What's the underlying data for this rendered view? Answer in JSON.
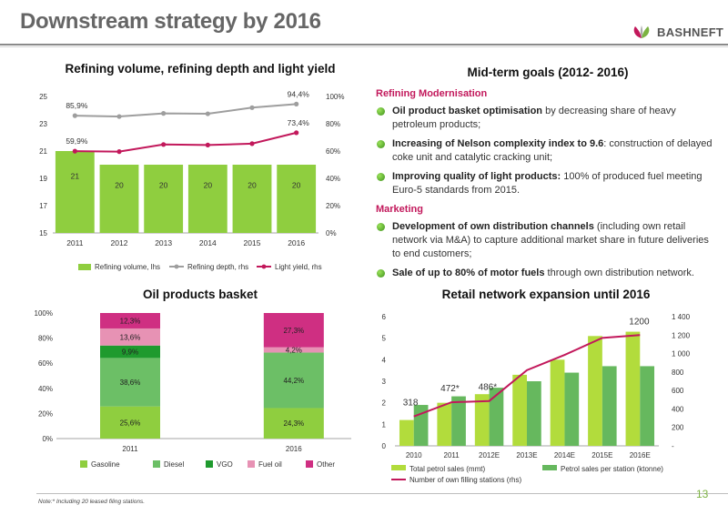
{
  "header": {
    "title": "Downstream strategy by 2016",
    "logo_text": "BASHNEFT"
  },
  "note": "Note:* Including 20 leased filing stations.",
  "page_number": "13",
  "goals": {
    "title": "Mid-term goals (2012- 2016)",
    "sections": [
      {
        "heading": "Refining Modernisation",
        "items": [
          {
            "bold": "Oil product basket optimisation",
            "text": " by decreasing share of heavy petroleum products;"
          },
          {
            "bold": "Increasing of Nelson complexity index to 9.6",
            "text": ": construction of delayed coke unit and catalytic cracking unit;"
          },
          {
            "bold": "Improving quality of light products:",
            "text": " 100% of produced fuel meeting Euro-5 standards from 2015."
          }
        ]
      },
      {
        "heading": "Marketing",
        "items": [
          {
            "bold": "Development of own distribution channels",
            "text": " (including own retail network via M&A) to capture additional market share in future deliveries to end customers;"
          },
          {
            "bold": "Sale of up to 80% of motor fuels",
            "text": " through own distribution network."
          }
        ]
      }
    ]
  },
  "chart_data": [
    {
      "id": "refining",
      "type": "bar",
      "title": "Refining volume, refining depth and light yield",
      "categories": [
        "2011",
        "2012",
        "2013",
        "2014",
        "2015",
        "2016"
      ],
      "bar_series": {
        "name": "Refining volume, lhs",
        "values": [
          21,
          20,
          20,
          20,
          20,
          20
        ],
        "labels": [
          "21",
          "20",
          "20",
          "20",
          "20",
          "20"
        ],
        "color": "#8fce3f"
      },
      "line_series": [
        {
          "name": "Refining depth, rhs",
          "values": [
            85.9,
            85.3,
            87.6,
            87.3,
            91.8,
            94.4
          ],
          "color": "#9e9e9e",
          "point_labels": [
            {
              "index": 0,
              "text": "85,9%"
            },
            {
              "index": 5,
              "text": "94,4%"
            }
          ]
        },
        {
          "name": "Light yield, rhs",
          "values": [
            59.9,
            59.6,
            64.8,
            64.4,
            65.4,
            73.4
          ],
          "color": "#c2185b",
          "point_labels": [
            {
              "index": 0,
              "text": "59,9%"
            },
            {
              "index": 5,
              "text": "73,4%"
            }
          ]
        }
      ],
      "y_left": {
        "min": 15,
        "max": 25,
        "ticks": [
          "15",
          "17",
          "19",
          "21",
          "23",
          "25"
        ]
      },
      "y_right": {
        "min": 0,
        "max": 100,
        "ticks": [
          "0%",
          "20%",
          "40%",
          "60%",
          "80%",
          "100%"
        ]
      },
      "legend": "bottom"
    },
    {
      "id": "basket",
      "type": "bar",
      "stacked": true,
      "title": "Oil products basket",
      "categories": [
        "2011",
        "2016"
      ],
      "series": [
        {
          "name": "Gasoline",
          "values": [
            25.6,
            24.3
          ],
          "labels": [
            "25,6%",
            "24,3%"
          ],
          "color": "#8fce3f"
        },
        {
          "name": "Diesel",
          "values": [
            38.6,
            44.2
          ],
          "labels": [
            "38,6%",
            "44,2%"
          ],
          "color": "#6cbf66"
        },
        {
          "name": "VGO",
          "values": [
            9.9,
            0
          ],
          "labels": [
            "9,9%",
            ""
          ],
          "color": "#1f9a2e"
        },
        {
          "name": "Fuel oil",
          "values": [
            13.6,
            4.2
          ],
          "labels": [
            "13,6%",
            "4,2%"
          ],
          "color": "#e792b4"
        },
        {
          "name": "Other",
          "values": [
            12.3,
            27.3
          ],
          "labels": [
            "12,3%",
            "27,3%"
          ],
          "color": "#cf2f82"
        }
      ],
      "y_axis": {
        "min": 0,
        "max": 100,
        "ticks": [
          "0%",
          "20%",
          "40%",
          "60%",
          "80%",
          "100%"
        ]
      },
      "legend": "bottom"
    },
    {
      "id": "retail",
      "type": "bar",
      "title": "Retail network expansion until 2016",
      "categories": [
        "2010",
        "2011",
        "2012E",
        "2013E",
        "2014E",
        "2015E",
        "2016E"
      ],
      "bar_series": [
        {
          "name": "Total petrol sales (mmt)",
          "values": [
            1.2,
            2.0,
            2.4,
            3.3,
            4.0,
            5.1,
            5.3
          ],
          "color": "#b2dc3c"
        },
        {
          "name": "Petrol sales per station (ktonne)",
          "values": [
            1.9,
            2.3,
            2.7,
            3.0,
            3.4,
            3.7,
            3.7
          ],
          "color": "#66b85e"
        }
      ],
      "line_series": {
        "name": "Number of own filling stations (rhs)",
        "values": [
          318,
          472,
          486,
          820,
          985,
          1170,
          1200
        ],
        "color": "#c2185b",
        "point_labels": [
          {
            "index": 0,
            "text": "318"
          },
          {
            "index": 1,
            "text": "472*"
          },
          {
            "index": 2,
            "text": "486*"
          },
          {
            "index": 6,
            "text": "1200"
          }
        ]
      },
      "y_left": {
        "min": 0,
        "max": 6,
        "ticks": [
          "0",
          "1",
          "2",
          "3",
          "4",
          "5",
          "6"
        ]
      },
      "y_right": {
        "min": 0,
        "max": 1400,
        "ticks": [
          "-",
          "200",
          "400",
          "600",
          "800",
          "1 000",
          "1 200",
          "1 400"
        ]
      },
      "legend": "bottom"
    }
  ]
}
